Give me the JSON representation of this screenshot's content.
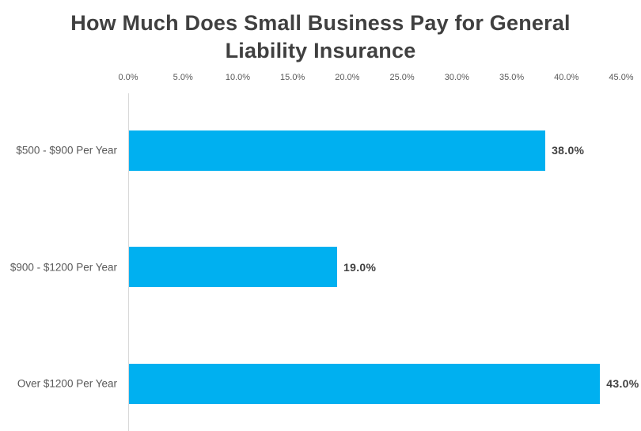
{
  "chart_data": {
    "type": "bar",
    "orientation": "horizontal",
    "title": "How Much Does Small Business Pay for General Liability Insurance",
    "categories": [
      "$500 - $900 Per Year",
      "$900 - $1200 Per Year",
      "Over $1200 Per Year"
    ],
    "values": [
      38.0,
      19.0,
      43.0
    ],
    "data_labels": [
      "38.0%",
      "19.0%",
      "43.0%"
    ],
    "xlabel": "",
    "ylabel": "",
    "xlim": [
      0,
      45
    ],
    "tick_step": 5,
    "tick_labels": [
      "0.0%",
      "5.0%",
      "10.0%",
      "15.0%",
      "20.0%",
      "25.0%",
      "30.0%",
      "35.0%",
      "40.0%",
      "45.0%"
    ],
    "tick_position": "top",
    "grid": false,
    "legend": false,
    "colors": {
      "background": "#FFFFFF",
      "bar": "#00B0F0",
      "title": "#404040",
      "tick_label": "#595959",
      "category_label": "#595959",
      "data_label": "#404040",
      "axis_line": "#D9D9D9"
    }
  }
}
